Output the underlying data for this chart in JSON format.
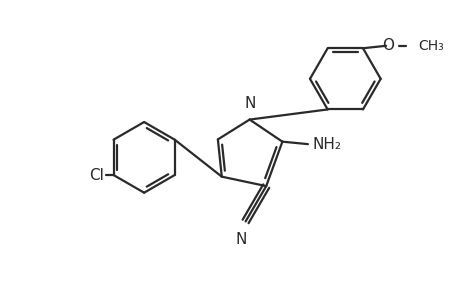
{
  "background_color": "#ffffff",
  "line_color": "#2a2a2a",
  "line_width": 1.6,
  "font_size": 10,
  "figsize": [
    4.6,
    3.0
  ],
  "dpi": 100,
  "xlim": [
    0,
    9.2
  ],
  "ylim": [
    0,
    6.0
  ]
}
